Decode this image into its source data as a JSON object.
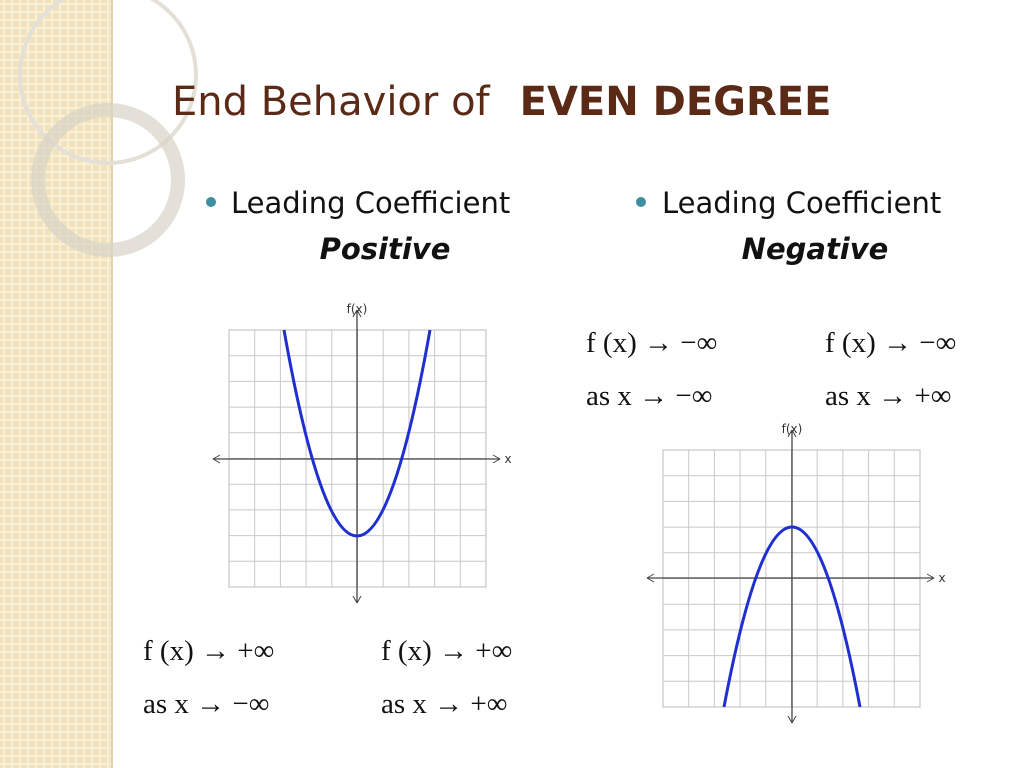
{
  "title": {
    "prefix": "End Behavior of",
    "emphasis": "EVEN DEGREE"
  },
  "columns": [
    {
      "bullet": "Leading Coefficient",
      "sign": "Positive",
      "graph": {
        "y_label": "f(x)",
        "x_label": "x"
      },
      "limits": [
        {
          "function": "f (x) → +∞",
          "condition": "as x → −∞"
        },
        {
          "function": "f (x) → +∞",
          "condition": "as x → +∞"
        }
      ]
    },
    {
      "bullet": "Leading Coefficient",
      "sign": "Negative",
      "graph": {
        "y_label": "f(x)",
        "x_label": "x"
      },
      "limits": [
        {
          "function": "f (x) → −∞",
          "condition": "as x → −∞"
        },
        {
          "function": "f (x) → −∞",
          "condition": "as x → +∞"
        }
      ]
    }
  ]
}
